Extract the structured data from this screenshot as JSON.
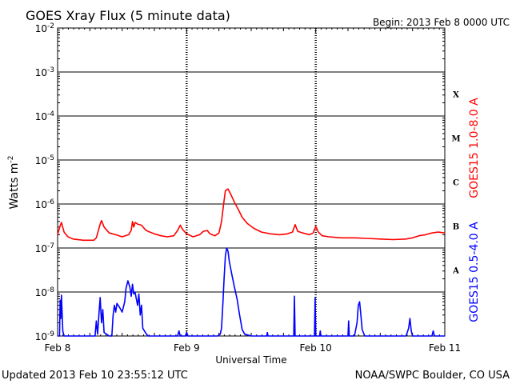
{
  "chart_data": {
    "type": "line",
    "title": "GOES Xray Flux (5 minute data)",
    "begin_label": "Begin:  2013 Feb 8 0000 UTC",
    "xlabel": "Universal Time",
    "ylabel": "Watts m",
    "ylabel_sup": "-2",
    "x_ticks": [
      "Feb 8",
      "Feb 9",
      "Feb 10",
      "Feb 11"
    ],
    "xlim_days": [
      0,
      3
    ],
    "ylim_log10": [
      -9,
      -2
    ],
    "y_ticks": [
      {
        "base": "10",
        "exp": "-2"
      },
      {
        "base": "10",
        "exp": "-3"
      },
      {
        "base": "10",
        "exp": "-4"
      },
      {
        "base": "10",
        "exp": "-5"
      },
      {
        "base": "10",
        "exp": "-6"
      },
      {
        "base": "10",
        "exp": "-7"
      },
      {
        "base": "10",
        "exp": "-8"
      },
      {
        "base": "10",
        "exp": "-9"
      }
    ],
    "flare_classes": [
      "X",
      "M",
      "C",
      "B",
      "A"
    ],
    "grid": true,
    "series": [
      {
        "name": "GOES15 1.0-8.0 A",
        "color": "#ff0000",
        "points": [
          [
            0.0,
            2e-07
          ],
          [
            0.02,
            3.2e-07
          ],
          [
            0.03,
            3.8e-07
          ],
          [
            0.05,
            2.3e-07
          ],
          [
            0.08,
            1.8e-07
          ],
          [
            0.12,
            1.6e-07
          ],
          [
            0.2,
            1.5e-07
          ],
          [
            0.28,
            1.5e-07
          ],
          [
            0.3,
            1.7e-07
          ],
          [
            0.33,
            3.5e-07
          ],
          [
            0.34,
            4.2e-07
          ],
          [
            0.36,
            3e-07
          ],
          [
            0.4,
            2.2e-07
          ],
          [
            0.45,
            2e-07
          ],
          [
            0.5,
            1.8e-07
          ],
          [
            0.55,
            2e-07
          ],
          [
            0.57,
            2.5e-07
          ],
          [
            0.58,
            4e-07
          ],
          [
            0.59,
            3e-07
          ],
          [
            0.6,
            3.8e-07
          ],
          [
            0.62,
            3.5e-07
          ],
          [
            0.65,
            3.3e-07
          ],
          [
            0.68,
            2.6e-07
          ],
          [
            0.7,
            2.4e-07
          ],
          [
            0.75,
            2.1e-07
          ],
          [
            0.8,
            1.9e-07
          ],
          [
            0.85,
            1.8e-07
          ],
          [
            0.9,
            1.9e-07
          ],
          [
            0.93,
            2.5e-07
          ],
          [
            0.95,
            3.3e-07
          ],
          [
            0.97,
            2.6e-07
          ],
          [
            1.0,
            2.1e-07
          ],
          [
            1.05,
            1.8e-07
          ],
          [
            1.1,
            2e-07
          ],
          [
            1.13,
            2.4e-07
          ],
          [
            1.16,
            2.5e-07
          ],
          [
            1.18,
            2.1e-07
          ],
          [
            1.22,
            1.9e-07
          ],
          [
            1.25,
            2.2e-07
          ],
          [
            1.27,
            4e-07
          ],
          [
            1.29,
            1.2e-06
          ],
          [
            1.3,
            2e-06
          ],
          [
            1.32,
            2.2e-06
          ],
          [
            1.34,
            1.7e-06
          ],
          [
            1.37,
            1.1e-06
          ],
          [
            1.4,
            7.5e-07
          ],
          [
            1.43,
            5e-07
          ],
          [
            1.47,
            3.6e-07
          ],
          [
            1.52,
            2.8e-07
          ],
          [
            1.58,
            2.3e-07
          ],
          [
            1.65,
            2.1e-07
          ],
          [
            1.72,
            2e-07
          ],
          [
            1.78,
            2.1e-07
          ],
          [
            1.82,
            2.3e-07
          ],
          [
            1.84,
            3.4e-07
          ],
          [
            1.86,
            2.4e-07
          ],
          [
            1.9,
            2.2e-07
          ],
          [
            1.95,
            2e-07
          ],
          [
            1.98,
            2.2e-07
          ],
          [
            2.0,
            3.1e-07
          ],
          [
            2.02,
            2.3e-07
          ],
          [
            2.05,
            1.9e-07
          ],
          [
            2.1,
            1.8e-07
          ],
          [
            2.2,
            1.7e-07
          ],
          [
            2.3,
            1.7e-07
          ],
          [
            2.4,
            1.65e-07
          ],
          [
            2.5,
            1.6e-07
          ],
          [
            2.6,
            1.55e-07
          ],
          [
            2.7,
            1.6e-07
          ],
          [
            2.75,
            1.7e-07
          ],
          [
            2.8,
            1.9e-07
          ],
          [
            2.85,
            2e-07
          ],
          [
            2.9,
            2.2e-07
          ],
          [
            2.95,
            2.3e-07
          ],
          [
            3.0,
            2.2e-07
          ]
        ]
      },
      {
        "name": "GOES15 0.5-4.0 A",
        "color": "#0000ff",
        "points": [
          [
            0.0,
            1e-09
          ],
          [
            0.015,
            1e-09
          ],
          [
            0.02,
            6.5e-09
          ],
          [
            0.025,
            2.5e-09
          ],
          [
            0.03,
            8.5e-09
          ],
          [
            0.04,
            1.3e-09
          ],
          [
            0.05,
            1e-09
          ],
          [
            0.29,
            1e-09
          ],
          [
            0.3,
            2.2e-09
          ],
          [
            0.31,
            1.1e-09
          ],
          [
            0.32,
            3e-09
          ],
          [
            0.33,
            7.5e-09
          ],
          [
            0.34,
            2e-09
          ],
          [
            0.35,
            4e-09
          ],
          [
            0.36,
            1.2e-09
          ],
          [
            0.4,
            1e-09
          ],
          [
            0.42,
            1e-09
          ],
          [
            0.43,
            3e-09
          ],
          [
            0.44,
            5e-09
          ],
          [
            0.45,
            3.5e-09
          ],
          [
            0.46,
            5.5e-09
          ],
          [
            0.48,
            4.5e-09
          ],
          [
            0.5,
            3.5e-09
          ],
          [
            0.52,
            6e-09
          ],
          [
            0.53,
            1.2e-08
          ],
          [
            0.545,
            1.8e-08
          ],
          [
            0.56,
            1.3e-08
          ],
          [
            0.57,
            8e-09
          ],
          [
            0.58,
            1.5e-08
          ],
          [
            0.59,
            9e-09
          ],
          [
            0.6,
            1e-08
          ],
          [
            0.61,
            7e-09
          ],
          [
            0.62,
            5e-09
          ],
          [
            0.63,
            9e-09
          ],
          [
            0.64,
            3e-09
          ],
          [
            0.65,
            5e-09
          ],
          [
            0.66,
            1.5e-09
          ],
          [
            0.68,
            1.2e-09
          ],
          [
            0.7,
            1e-09
          ],
          [
            0.75,
            1e-09
          ],
          [
            0.93,
            1e-09
          ],
          [
            0.94,
            1.3e-09
          ],
          [
            0.95,
            1e-09
          ],
          [
            0.99,
            1e-09
          ],
          [
            1.0,
            1.2e-09
          ],
          [
            1.01,
            1e-09
          ],
          [
            1.24,
            1e-09
          ],
          [
            1.26,
            1.1e-09
          ],
          [
            1.27,
            1.5e-09
          ],
          [
            1.28,
            5e-09
          ],
          [
            1.29,
            2e-08
          ],
          [
            1.3,
            6.5e-08
          ],
          [
            1.31,
            1e-07
          ],
          [
            1.32,
            8.5e-08
          ],
          [
            1.33,
            5e-08
          ],
          [
            1.35,
            2.5e-08
          ],
          [
            1.37,
            1.3e-08
          ],
          [
            1.39,
            7e-09
          ],
          [
            1.41,
            3e-09
          ],
          [
            1.43,
            1.4e-09
          ],
          [
            1.45,
            1.1e-09
          ],
          [
            1.5,
            1e-09
          ],
          [
            1.62,
            1e-09
          ],
          [
            1.625,
            1.2e-09
          ],
          [
            1.63,
            1e-09
          ],
          [
            1.83,
            1e-09
          ],
          [
            1.835,
            8e-09
          ],
          [
            1.84,
            1e-09
          ],
          [
            1.99,
            1e-09
          ],
          [
            1.995,
            7.5e-09
          ],
          [
            2.0,
            1e-09
          ],
          [
            2.03,
            1e-09
          ],
          [
            2.035,
            1.3e-09
          ],
          [
            2.04,
            1e-09
          ],
          [
            2.25,
            1e-09
          ],
          [
            2.255,
            2.2e-09
          ],
          [
            2.26,
            1e-09
          ],
          [
            2.3,
            1e-09
          ],
          [
            2.32,
            2e-09
          ],
          [
            2.33,
            5e-09
          ],
          [
            2.34,
            6e-09
          ],
          [
            2.35,
            3e-09
          ],
          [
            2.36,
            1.4e-09
          ],
          [
            2.38,
            1e-09
          ],
          [
            2.7,
            1e-09
          ],
          [
            2.72,
            1.5e-09
          ],
          [
            2.73,
            2.5e-09
          ],
          [
            2.74,
            1.3e-09
          ],
          [
            2.75,
            1e-09
          ],
          [
            2.9,
            1e-09
          ],
          [
            2.91,
            1.3e-09
          ],
          [
            2.92,
            1e-09
          ],
          [
            3.0,
            1e-09
          ]
        ]
      }
    ]
  },
  "footer": {
    "updated": "Updated 2013 Feb 10 23:55:12 UTC",
    "source": "NOAA/SWPC Boulder, CO USA"
  }
}
